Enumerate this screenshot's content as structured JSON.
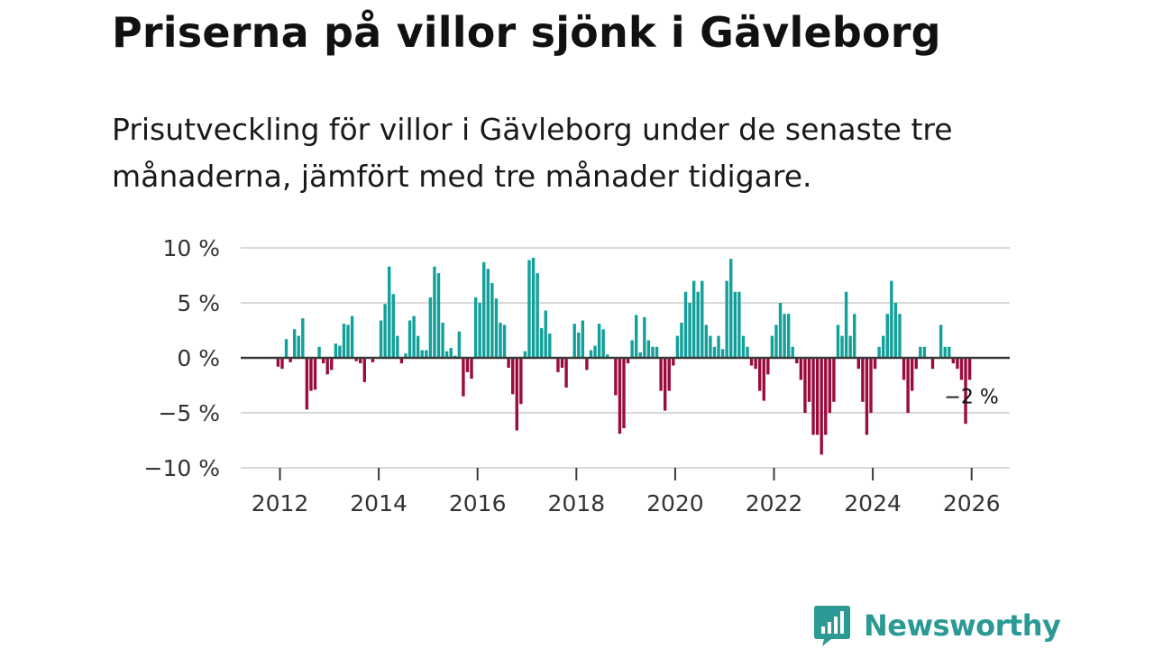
{
  "header": {
    "title": "Priserna på villor sjönk i Gävleborg",
    "subtitle": "Prisutveckling för villor i Gävleborg under de senaste tre månaderna, jämfört med tre månader tidigare."
  },
  "logo": {
    "text": "Newsworthy"
  },
  "colors": {
    "positive": "#12a09a",
    "negative": "#9a0c3e",
    "grid": "#d9d9d9",
    "baseline": "#3a3a3a",
    "axis_text": "#333333",
    "brand": "#2b9a95"
  },
  "chart_data": {
    "type": "bar",
    "title": "Priserna på villor sjönk i Gävleborg",
    "xlabel": "",
    "ylabel": "",
    "ylim": [
      -10,
      10
    ],
    "y_ticks": [
      {
        "value": 10,
        "label": "10 %"
      },
      {
        "value": 5,
        "label": "5 %"
      },
      {
        "value": 0,
        "label": "0 %"
      },
      {
        "value": -5,
        "label": "−5 %"
      },
      {
        "value": -10,
        "label": "−10 %"
      }
    ],
    "x_ticks": [
      {
        "value": 2012,
        "label": "2012"
      },
      {
        "value": 2014,
        "label": "2014"
      },
      {
        "value": 2016,
        "label": "2016"
      },
      {
        "value": 2018,
        "label": "2018"
      },
      {
        "value": 2020,
        "label": "2020"
      },
      {
        "value": 2022,
        "label": "2022"
      },
      {
        "value": 2024,
        "label": "2024"
      },
      {
        "value": 2026,
        "label": "2026"
      }
    ],
    "x_start": 2011.92,
    "annotation": {
      "label": "−2 %",
      "value": -2
    },
    "values": [
      -0.8,
      -1.0,
      1.7,
      -0.4,
      2.6,
      2.0,
      3.6,
      -4.7,
      -3.0,
      -2.9,
      1.0,
      -0.5,
      -1.5,
      -1.1,
      1.3,
      1.1,
      3.1,
      3.0,
      3.8,
      -0.3,
      -0.5,
      -2.2,
      0.0,
      -0.4,
      0.0,
      3.4,
      4.9,
      8.3,
      5.8,
      2.0,
      -0.5,
      0.4,
      3.4,
      3.8,
      2.0,
      0.7,
      0.7,
      5.5,
      8.3,
      7.7,
      3.2,
      0.6,
      0.9,
      0.2,
      2.4,
      -3.5,
      -1.3,
      -1.9,
      5.5,
      5.0,
      8.7,
      8.1,
      6.8,
      5.4,
      3.2,
      3.0,
      -0.9,
      -3.3,
      -6.6,
      -4.2,
      0.6,
      8.9,
      9.1,
      7.7,
      2.7,
      4.3,
      2.2,
      0.0,
      -1.3,
      -0.9,
      -2.7,
      0.0,
      3.1,
      2.3,
      3.4,
      -1.1,
      0.7,
      1.1,
      3.1,
      2.6,
      0.3,
      0.0,
      -3.4,
      -6.9,
      -6.4,
      -0.5,
      1.6,
      3.9,
      0.5,
      3.7,
      1.6,
      1.0,
      1.0,
      -3.0,
      -4.8,
      -3.0,
      -0.7,
      2.0,
      3.2,
      6.0,
      5.0,
      7.0,
      6.0,
      7.0,
      3.0,
      2.0,
      1.0,
      2.0,
      0.8,
      7.0,
      9.0,
      6.0,
      6.0,
      2.0,
      1.0,
      -0.7,
      -1.0,
      -3.0,
      -3.9,
      -1.5,
      2.0,
      3.0,
      5.0,
      4.0,
      4.0,
      1.0,
      -0.5,
      -2.0,
      -5.0,
      -4.0,
      -7.0,
      -7.0,
      -8.8,
      -7.0,
      -5.0,
      -4.0,
      3.0,
      2.0,
      6.0,
      2.0,
      4.0,
      -1.0,
      -4.0,
      -7.0,
      -5.0,
      -1.0,
      1.0,
      2.0,
      4.0,
      7.0,
      5.0,
      4.0,
      -2.0,
      -5.0,
      -3.0,
      -1.0,
      1.0,
      1.0,
      0.0,
      -1.0,
      0.0,
      3.0,
      1.0,
      1.0,
      -0.5,
      -1.0,
      -2.0,
      -6.0,
      -2.0
    ]
  }
}
